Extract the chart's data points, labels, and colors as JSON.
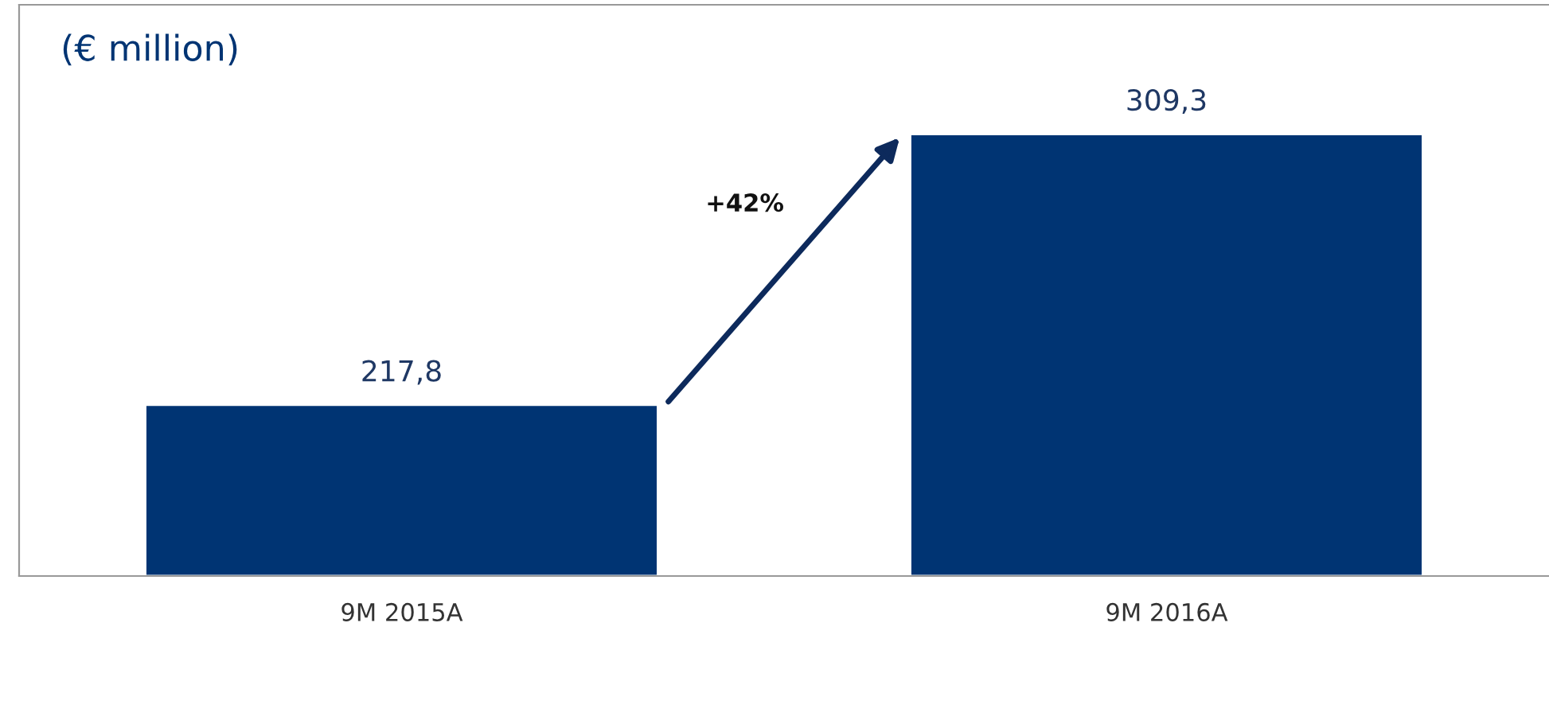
{
  "chart_data": {
    "type": "bar",
    "title": "(€ million)",
    "categories": [
      "9M 2015A",
      "9M 2016A"
    ],
    "values": [
      217.8,
      309.3
    ],
    "value_labels": [
      "217,8",
      "309,3"
    ],
    "color": "#003473",
    "ylim": [
      160,
      353
    ],
    "tick_labels": "x",
    "grid": false,
    "legend": false,
    "annotations": [
      "+42%"
    ]
  }
}
